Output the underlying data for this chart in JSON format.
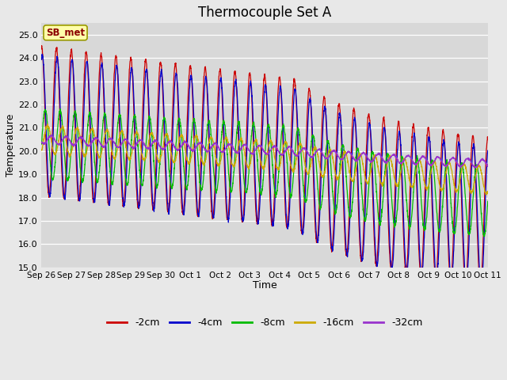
{
  "title": "Thermocouple Set A",
  "xlabel": "Time",
  "ylabel": "Temperature",
  "ylim": [
    15.0,
    25.5
  ],
  "yticks": [
    15.0,
    16.0,
    17.0,
    18.0,
    19.0,
    20.0,
    21.0,
    22.0,
    23.0,
    24.0,
    25.0
  ],
  "series_colors": {
    "-2cm": "#cc0000",
    "-4cm": "#0000cc",
    "-8cm": "#00bb00",
    "-16cm": "#ccaa00",
    "-32cm": "#9933cc"
  },
  "annotation_text": "SB_met",
  "annotation_bg": "#ffffaa",
  "annotation_border": "#999900",
  "x_tick_labels": [
    "Sep 26",
    "Sep 27",
    "Sep 28",
    "Sep 29",
    "Sep 30",
    "Oct 1",
    "Oct 2",
    "Oct 3",
    "Oct 4",
    "Oct 5",
    "Oct 6",
    "Oct 7",
    "Oct 8",
    "Oct 9",
    "Oct 10",
    "Oct 11"
  ]
}
